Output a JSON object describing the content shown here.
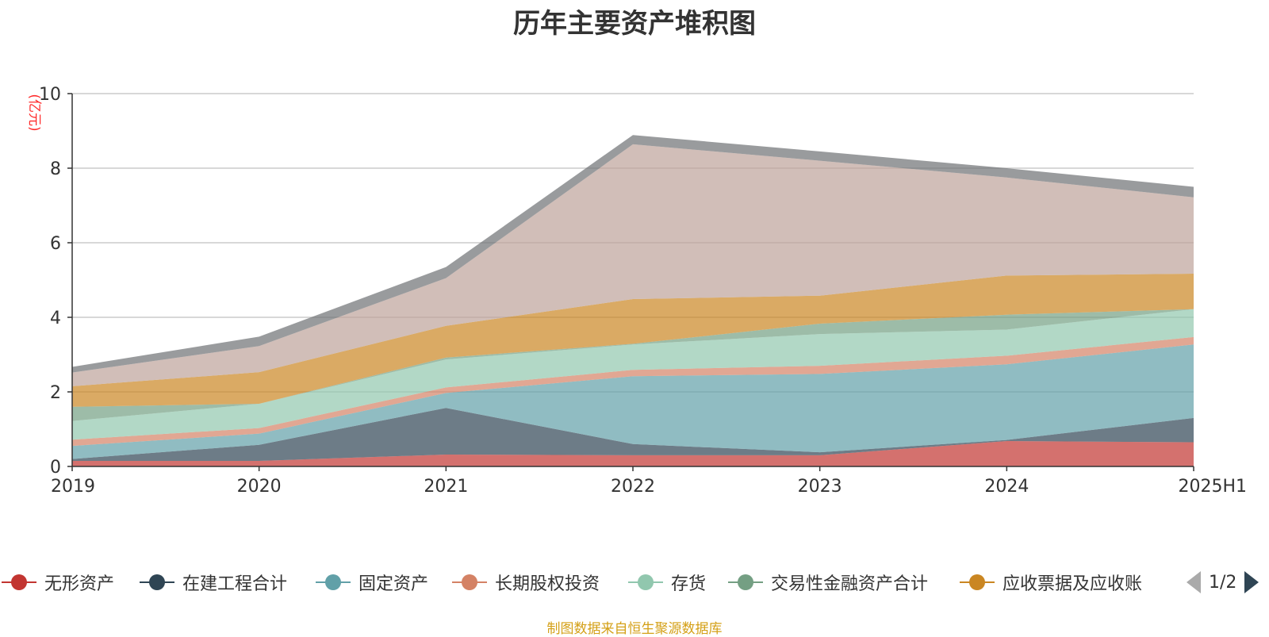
{
  "title": "历年主要资产堆积图",
  "unit": "(亿元)",
  "source": "制图数据来自恒生聚源数据库",
  "pager": "1/2",
  "chart_data": {
    "type": "area",
    "stacked": true,
    "title": "历年主要资产堆积图",
    "ylabel": "(亿元)",
    "ylim": [
      0,
      10
    ],
    "yticks": [
      0,
      2,
      4,
      6,
      8,
      10
    ],
    "grid": true,
    "legend_position": "bottom",
    "categories": [
      "2019",
      "2020",
      "2021",
      "2022",
      "2023",
      "2024",
      "2025H1"
    ],
    "series": [
      {
        "name": "无形资产",
        "color": "#c23531",
        "legend": true,
        "values": [
          0.15,
          0.15,
          0.32,
          0.3,
          0.3,
          0.68,
          0.65
        ]
      },
      {
        "name": "在建工程合计",
        "color": "#2f4554",
        "legend": true,
        "values": [
          0.05,
          0.43,
          1.25,
          0.3,
          0.08,
          0.03,
          0.65
        ]
      },
      {
        "name": "固定资产",
        "color": "#61a0a8",
        "legend": true,
        "values": [
          0.35,
          0.3,
          0.4,
          1.82,
          2.1,
          2.03,
          1.97
        ]
      },
      {
        "name": "长期股权投资",
        "color": "#d48265",
        "legend": true,
        "values": [
          0.17,
          0.15,
          0.15,
          0.17,
          0.22,
          0.23,
          0.2
        ]
      },
      {
        "name": "存货",
        "color": "#91c7ae",
        "legend": true,
        "values": [
          0.5,
          0.65,
          0.75,
          0.68,
          0.85,
          0.7,
          0.75
        ]
      },
      {
        "name": "交易性金融资产合计",
        "color": "#749f83",
        "legend": true,
        "values": [
          0.38,
          0.0,
          0.05,
          0.02,
          0.28,
          0.4,
          0.0
        ]
      },
      {
        "name": "应收票据及应收账",
        "color": "#ca8622",
        "legend": true,
        "values": [
          0.55,
          0.85,
          0.85,
          1.2,
          0.75,
          1.05,
          0.95
        ]
      },
      {
        "name": "",
        "color": "#bda29a",
        "legend": false,
        "values": [
          0.37,
          0.7,
          1.28,
          4.15,
          3.62,
          2.63,
          2.05
        ]
      },
      {
        "name": "",
        "color": "#6e7074",
        "legend": false,
        "values": [
          0.15,
          0.25,
          0.3,
          0.25,
          0.25,
          0.25,
          0.28
        ]
      }
    ]
  }
}
